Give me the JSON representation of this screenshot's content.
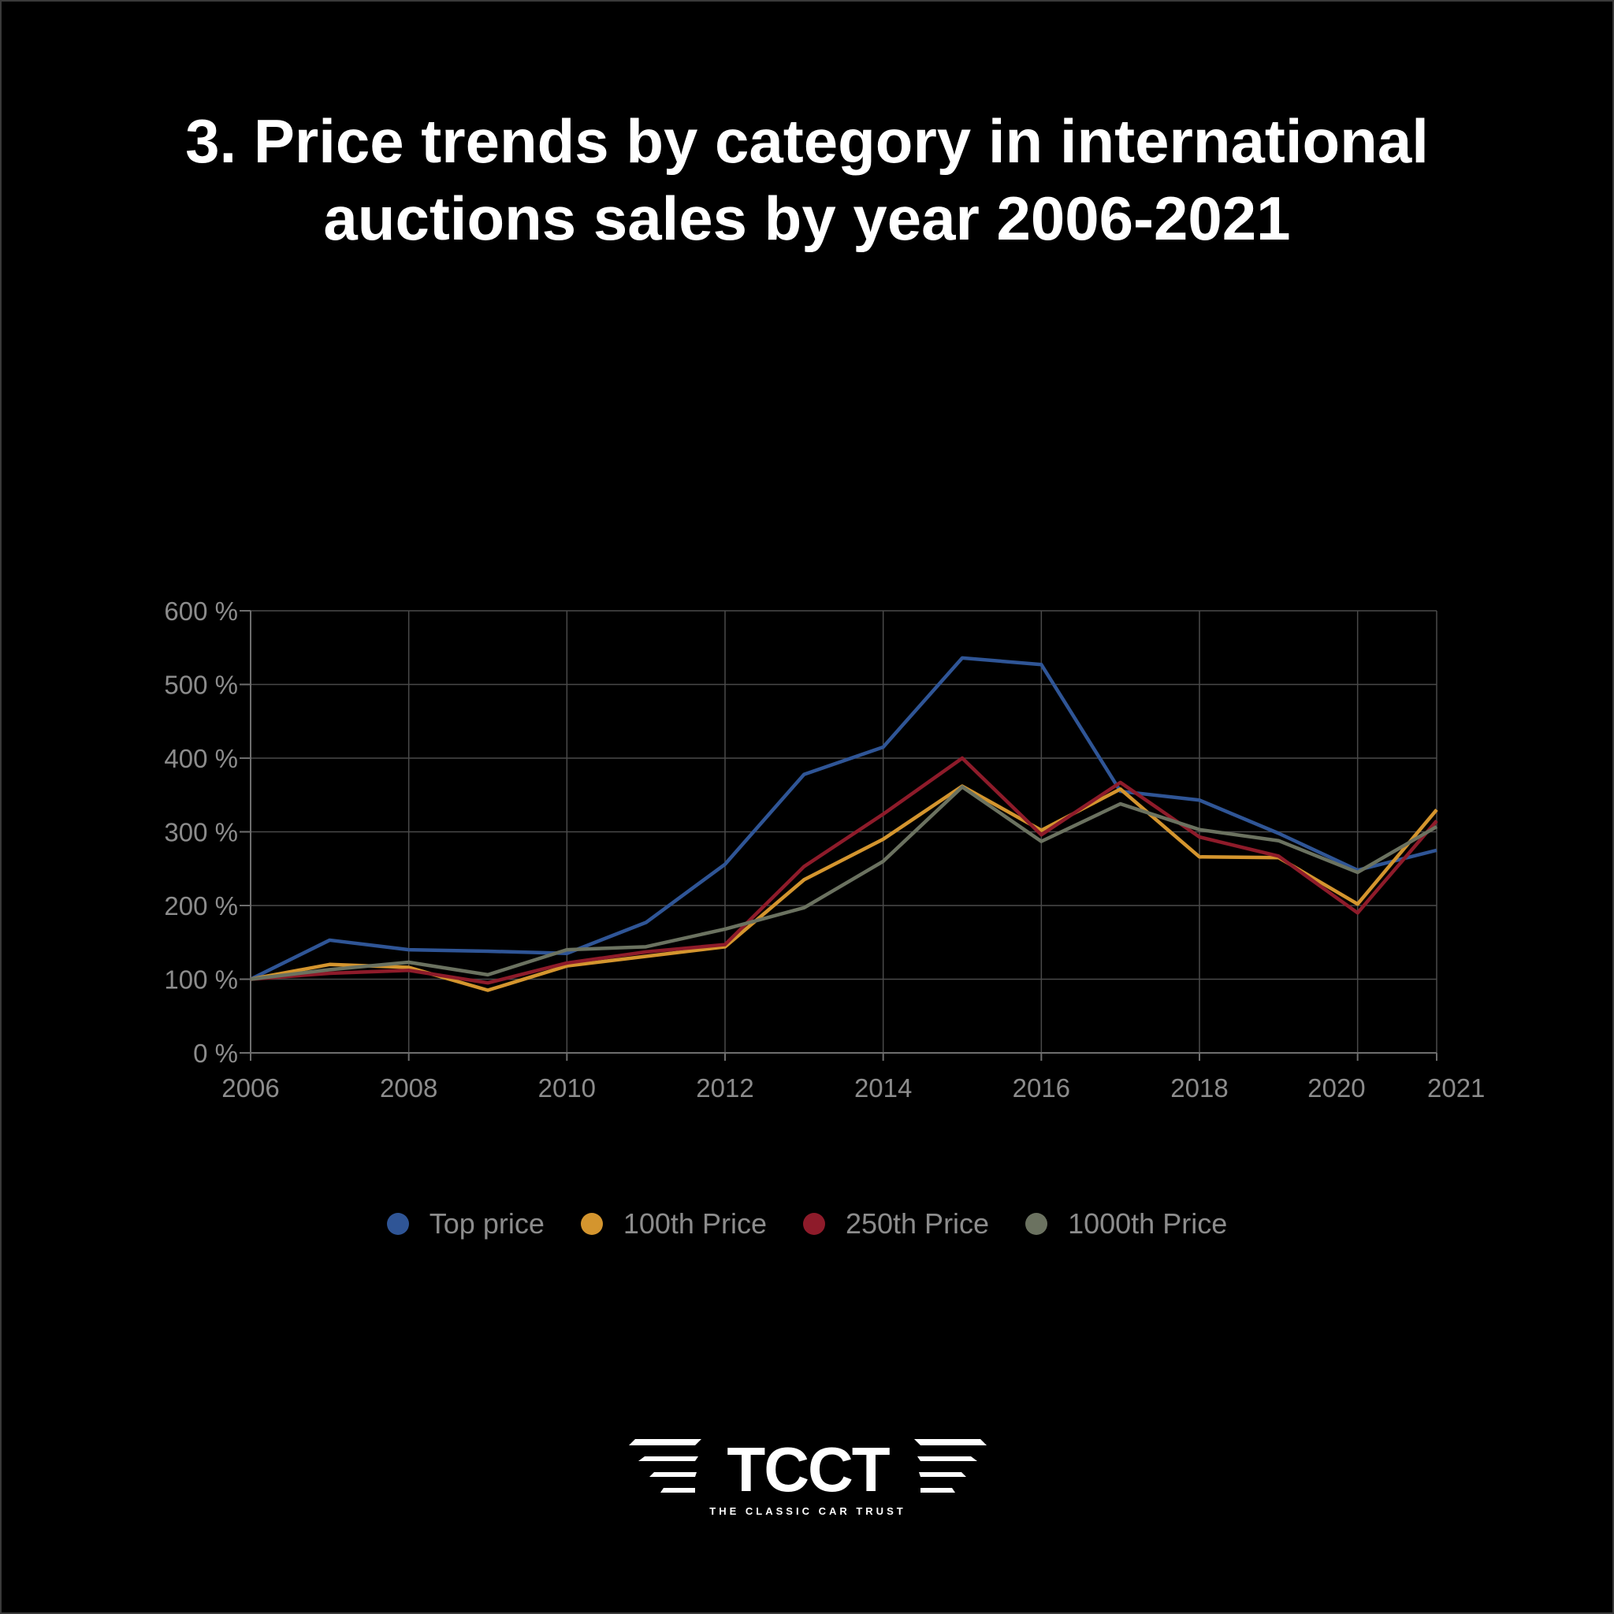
{
  "title": {
    "line1": "3. Price trends by category in international",
    "line2": "auctions sales by year 2006-2021"
  },
  "chart_data": {
    "type": "line",
    "title": "3. Price trends by category in international auctions sales by year 2006-2021",
    "x": [
      2006,
      2007,
      2008,
      2009,
      2010,
      2011,
      2012,
      2013,
      2014,
      2015,
      2016,
      2017,
      2018,
      2019,
      2020,
      2021
    ],
    "x_ticks": [
      "2006",
      "2008",
      "2010",
      "2012",
      "2014",
      "2016",
      "2018",
      "2020",
      "2021"
    ],
    "y_ticks": [
      "0 %",
      "100 %",
      "200 %",
      "300 %",
      "400 %",
      "500 %",
      "600 %"
    ],
    "ylim": [
      0,
      600
    ],
    "xlim": [
      2006,
      2021
    ],
    "grid": true,
    "legend_position": "bottom",
    "series": [
      {
        "name": "Top price",
        "color": "#2f5596",
        "values": [
          100,
          153,
          140,
          138,
          135,
          177,
          256,
          378,
          415,
          536,
          527,
          355,
          343,
          298,
          248,
          275
        ]
      },
      {
        "name": "100th Price",
        "color": "#d4952e",
        "values": [
          100,
          120,
          116,
          85,
          118,
          131,
          144,
          235,
          290,
          362,
          302,
          358,
          266,
          265,
          202,
          330
        ]
      },
      {
        "name": "250th Price",
        "color": "#8e1b2a",
        "values": [
          100,
          108,
          112,
          95,
          122,
          137,
          147,
          253,
          324,
          400,
          296,
          367,
          293,
          267,
          190,
          315
        ]
      },
      {
        "name": "1000th Price",
        "color": "#6b7260",
        "values": [
          100,
          113,
          123,
          106,
          140,
          144,
          168,
          197,
          260,
          361,
          287,
          338,
          303,
          288,
          245,
          307
        ]
      }
    ]
  },
  "logo": {
    "text": "TCCT",
    "tagline": "THE CLASSIC CAR TRUST"
  }
}
